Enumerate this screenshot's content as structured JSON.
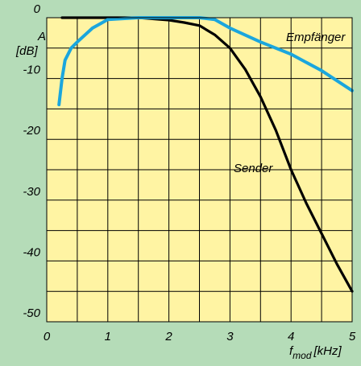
{
  "chart_data": {
    "type": "line",
    "y_label": "A",
    "y_label_unit": "[dB]",
    "x_label": "f",
    "x_label_sub": "mod",
    "x_label_unit": "[kHz]",
    "xlim": [
      0,
      5
    ],
    "ylim": [
      -50,
      0
    ],
    "xticks": [
      0,
      1,
      2,
      3,
      4,
      5
    ],
    "yticks": [
      0,
      -10,
      -20,
      -30,
      -40,
      -50
    ],
    "xgrid": [
      0,
      0.5,
      1,
      1.5,
      2,
      2.5,
      3,
      3.5,
      4,
      4.5,
      5
    ],
    "ygrid": [
      0,
      -5,
      -10,
      -15,
      -20,
      -25,
      -30,
      -35,
      -40,
      -45,
      -50
    ],
    "grid": true,
    "series": [
      {
        "name": "Sender",
        "color": "#000000",
        "x": [
          0.25,
          0.5,
          1,
          1.5,
          2,
          2.25,
          2.5,
          2.75,
          3,
          3.25,
          3.5,
          3.75,
          4,
          4.25,
          4.5,
          4.75,
          5
        ],
        "values": [
          0,
          0,
          0,
          0,
          -0.4,
          -0.8,
          -1.3,
          -2.8,
          -5,
          -8.5,
          -13,
          -18.5,
          -25,
          -30.5,
          -35.5,
          -40.5,
          -45
        ]
      },
      {
        "name": "Empfänger",
        "color": "#1ba6dd",
        "x": [
          0.2,
          0.25,
          0.3,
          0.4,
          0.5,
          0.75,
          1,
          1.5,
          2,
          2.5,
          2.75,
          3,
          3.5,
          4,
          4.5,
          5
        ],
        "values": [
          -14.3,
          -10,
          -7,
          -5,
          -4,
          -1.7,
          -0.3,
          0,
          0,
          0,
          -0.3,
          -1.7,
          -4,
          -6,
          -8.7,
          -12
        ]
      }
    ]
  }
}
